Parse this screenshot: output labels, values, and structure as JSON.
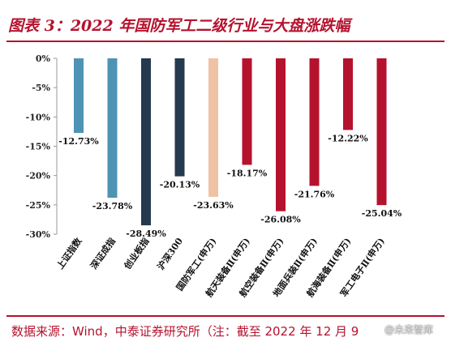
{
  "title": "图表 3：2022 年国防军工二级行业与大盘涨跌幅",
  "source": "数据来源：Wind，中泰证券研究所（注：截至 2022 年 12 月 9",
  "watermark": "@未来智库",
  "chart_data": {
    "type": "bar",
    "categories": [
      "上证指数",
      "深证成指",
      "创业板指",
      "沪深300",
      "国防军工(申万)",
      "航天装备Ⅱ(申万)",
      "航空装备Ⅱ(申万)",
      "地面兵装Ⅱ(申万)",
      "航海装备Ⅱ(申万)",
      "军工电子Ⅱ(申万)"
    ],
    "values": [
      -12.73,
      -23.78,
      -28.49,
      -20.13,
      -23.63,
      -18.17,
      -26.08,
      -21.76,
      -12.22,
      -25.04
    ],
    "data_labels": [
      "-12.73%",
      "-23.78%",
      "-28.49%",
      "-20.13%",
      "-23.63%",
      "-18.17%",
      "-26.08%",
      "-21.76%",
      "-12.22%",
      "-25.04%"
    ],
    "colors": [
      "#4e93b5",
      "#4e93b5",
      "#25394f",
      "#25394f",
      "#f1c1a4",
      "#b5122d",
      "#b5122d",
      "#b5122d",
      "#b5122d",
      "#b5122d"
    ],
    "ylim": [
      -30,
      0
    ],
    "yticks": [
      0,
      -5,
      -10,
      -15,
      -20,
      -25,
      -30
    ],
    "ytick_labels": [
      "0%",
      "-5%",
      "-10%",
      "-15%",
      "-20%",
      "-25%",
      "-30%"
    ],
    "grid": false,
    "legend": "none"
  }
}
